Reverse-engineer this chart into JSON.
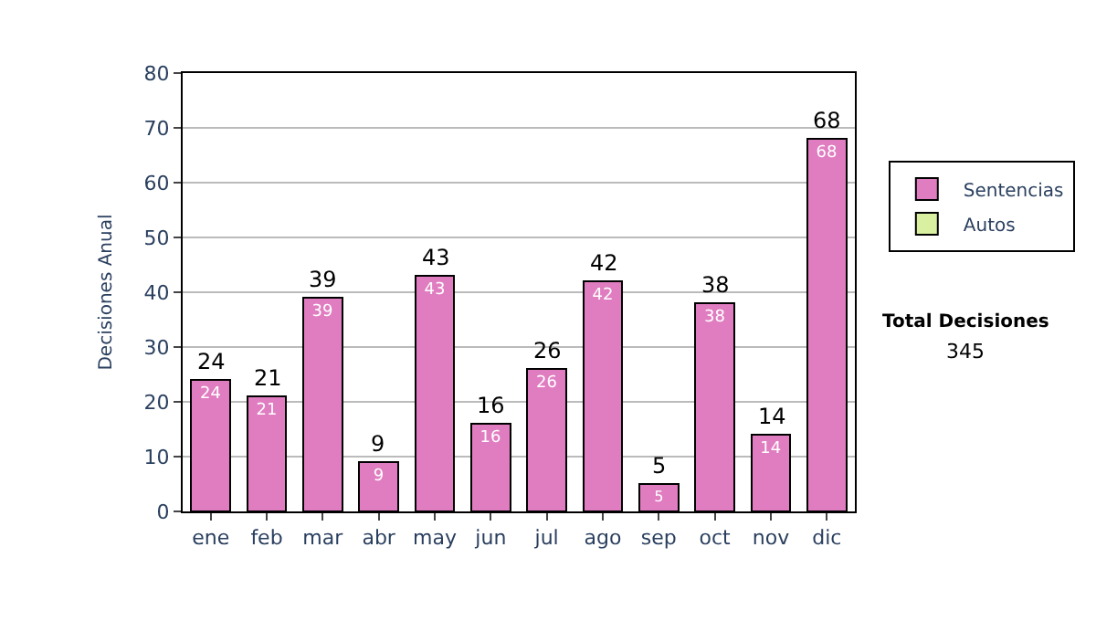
{
  "chart_data": {
    "type": "bar",
    "stacked": true,
    "ylabel": "Decisiones Anual",
    "categories": [
      "ene",
      "feb",
      "mar",
      "abr",
      "may",
      "jun",
      "jul",
      "ago",
      "sep",
      "oct",
      "nov",
      "dic"
    ],
    "series": [
      {
        "name": "Sentencias",
        "color": "#e07cc0",
        "values": [
          24,
          21,
          39,
          9,
          43,
          16,
          26,
          42,
          5,
          38,
          14,
          68
        ]
      },
      {
        "name": "Autos",
        "color": "#d8f0a0",
        "values": [
          null,
          null,
          null,
          null,
          null,
          null,
          null,
          null,
          null,
          null,
          null,
          null
        ]
      }
    ],
    "totals": [
      "24",
      "21",
      "39",
      "9",
      "43",
      "16",
      "26",
      "42",
      "5",
      "38",
      "14",
      "68"
    ],
    "data_labels": true,
    "ylim": [
      0,
      80
    ],
    "yticks": [
      0,
      10,
      20,
      30,
      40,
      50,
      60,
      70,
      80
    ],
    "grid": "y",
    "legend": "right",
    "annotations": [
      "Total Decisiones",
      "345"
    ]
  }
}
